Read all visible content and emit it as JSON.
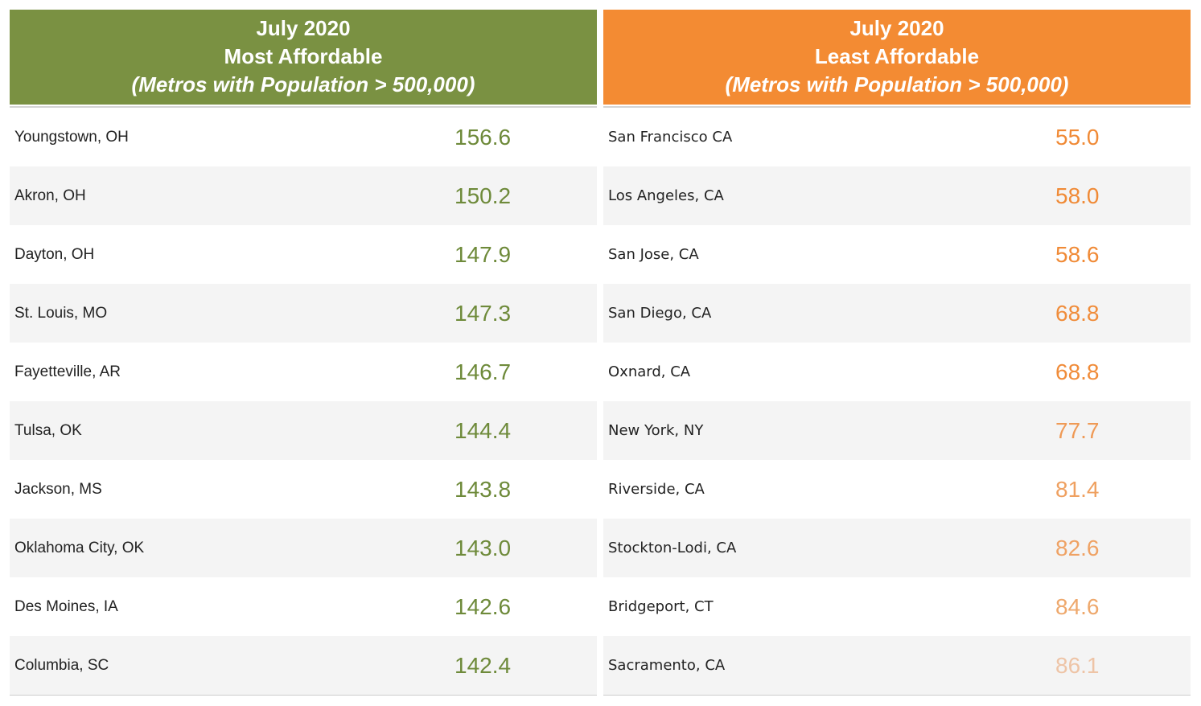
{
  "most_affordable": {
    "title_line1": "July 2020",
    "title_line2": "Most Affordable",
    "title_line3": "(Metros with Population > 500,000)",
    "color": "#7a9142",
    "rows": [
      {
        "city": "Youngstown, OH",
        "value": "156.6",
        "color": "#6e8a3a"
      },
      {
        "city": "Akron, OH",
        "value": "150.2",
        "color": "#6e8a3a"
      },
      {
        "city": "Dayton, OH",
        "value": "147.9",
        "color": "#6e8a3a"
      },
      {
        "city": "St. Louis, MO",
        "value": "147.3",
        "color": "#6e8a3a"
      },
      {
        "city": "Fayetteville, AR",
        "value": "146.7",
        "color": "#6e8a3a"
      },
      {
        "city": "Tulsa, OK",
        "value": "144.4",
        "color": "#6e8a3a"
      },
      {
        "city": "Jackson, MS",
        "value": "143.8",
        "color": "#6e8a3a"
      },
      {
        "city": "Oklahoma City, OK",
        "value": "143.0",
        "color": "#6e8a3a"
      },
      {
        "city": "Des Moines, IA",
        "value": "142.6",
        "color": "#6e8a3a"
      },
      {
        "city": "Columbia, SC",
        "value": "142.4",
        "color": "#6e8a3a"
      }
    ]
  },
  "least_affordable": {
    "title_line1": "July 2020",
    "title_line2": "Least Affordable",
    "title_line3": "(Metros with Population > 500,000)",
    "color": "#f38b33",
    "rows": [
      {
        "city": "San Francisco CA",
        "value": "55.0",
        "color": "#f08a36"
      },
      {
        "city": "Los Angeles, CA",
        "value": "58.0",
        "color": "#f08a36"
      },
      {
        "city": "San Jose, CA",
        "value": "58.6",
        "color": "#f08a36"
      },
      {
        "city": "San Diego, CA",
        "value": "68.8",
        "color": "#f08c3a"
      },
      {
        "city": "Oxnard, CA",
        "value": "68.8",
        "color": "#f08c3a"
      },
      {
        "city": "New York, NY",
        "value": "77.7",
        "color": "#ef9a56"
      },
      {
        "city": "Riverside, CA",
        "value": "81.4",
        "color": "#efa060"
      },
      {
        "city": "Stockton-Lodi, CA",
        "value": "82.6",
        "color": "#efa264"
      },
      {
        "city": "Bridgeport, CT",
        "value": "84.6",
        "color": "#eea86c"
      },
      {
        "city": "Sacramento, CA",
        "value": "86.1",
        "color": "#eec4a6"
      }
    ]
  },
  "chart_data": {
    "type": "table",
    "title": "July 2020 Housing Affordability (Metros with Population > 500,000)",
    "tables": [
      {
        "name": "Most Affordable",
        "categories": [
          "Youngstown, OH",
          "Akron, OH",
          "Dayton, OH",
          "St. Louis, MO",
          "Fayetteville, AR",
          "Tulsa, OK",
          "Jackson, MS",
          "Oklahoma City, OK",
          "Des Moines, IA",
          "Columbia, SC"
        ],
        "values": [
          156.6,
          150.2,
          147.9,
          147.3,
          146.7,
          144.4,
          143.8,
          143.0,
          142.6,
          142.4
        ]
      },
      {
        "name": "Least Affordable",
        "categories": [
          "San Francisco CA",
          "Los Angeles, CA",
          "San Jose, CA",
          "San Diego, CA",
          "Oxnard, CA",
          "New York, NY",
          "Riverside, CA",
          "Stockton-Lodi, CA",
          "Bridgeport, CT",
          "Sacramento, CA"
        ],
        "values": [
          55.0,
          58.0,
          58.6,
          68.8,
          68.8,
          77.7,
          81.4,
          82.6,
          84.6,
          86.1
        ]
      }
    ]
  }
}
